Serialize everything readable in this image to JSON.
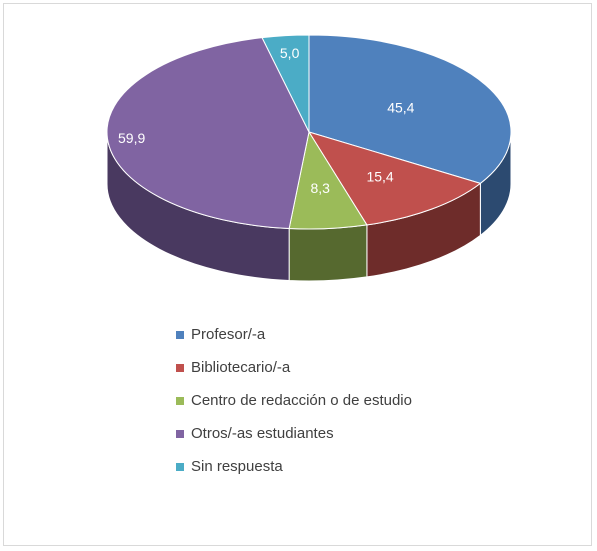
{
  "chart_data": {
    "type": "pie",
    "style": "3d",
    "legend_position": "bottom",
    "categories": [
      "Profesor/-a",
      "Bibliotecario/-a",
      "Centro de redacción o de estudio",
      "Otros/-as estudiantes",
      "Sin respuesta"
    ],
    "values": [
      45.4,
      15.4,
      8.3,
      59.9,
      5.0
    ],
    "data_labels": [
      "45,4",
      "15,4",
      "8,3",
      "59,9",
      "5,0"
    ],
    "colors": [
      "#4f81bd",
      "#c0504d",
      "#9bbb59",
      "#8064a2",
      "#4bacc6"
    ],
    "side_colors": [
      "#2c4a70",
      "#6e2c2a",
      "#56692f",
      "#493960",
      "#2a6677"
    ]
  }
}
